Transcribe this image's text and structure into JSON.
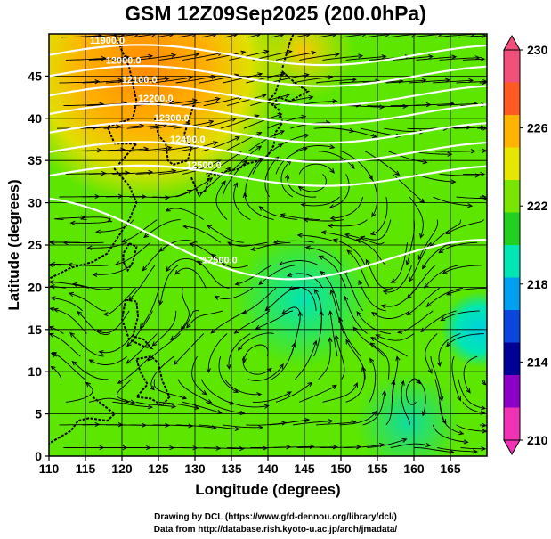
{
  "title": "GSM 12Z09Sep2025 (200.0hPa)",
  "map": {
    "xlabel": "Longitude (degrees)",
    "ylabel": "Latitude (degrees)",
    "lon_range": [
      110,
      170
    ],
    "lat_range": [
      0,
      50
    ],
    "lon_ticks": [
      "110",
      "115",
      "120",
      "125",
      "130",
      "135",
      "140",
      "145",
      "150",
      "155",
      "160",
      "165"
    ],
    "lat_ticks": [
      "0",
      "5",
      "10",
      "15",
      "20",
      "25",
      "30",
      "35",
      "40",
      "45"
    ],
    "contour_labels": [
      "11900.0",
      "12000.0",
      "12100.0",
      "12200.0",
      "12300.0",
      "12400.0",
      "12500.0"
    ],
    "colorbar": {
      "ticks": [
        "230",
        "226",
        "222",
        "218",
        "214",
        "210"
      ],
      "colors": [
        "#f0507a",
        "#ff5a22",
        "#ffb400",
        "#e6e600",
        "#78e600",
        "#22d022",
        "#00e6b4",
        "#00a0f0",
        "#0a46dc",
        "#000096",
        "#8c00c8",
        "#f032b4"
      ]
    }
  },
  "credits": {
    "line1": "Drawing by DCL (https://www.gfd-dennou.org/library/dcl/)",
    "line2": "Data from http://database.rish.kyoto-u.ac.jp/arch/jmadata/"
  }
}
